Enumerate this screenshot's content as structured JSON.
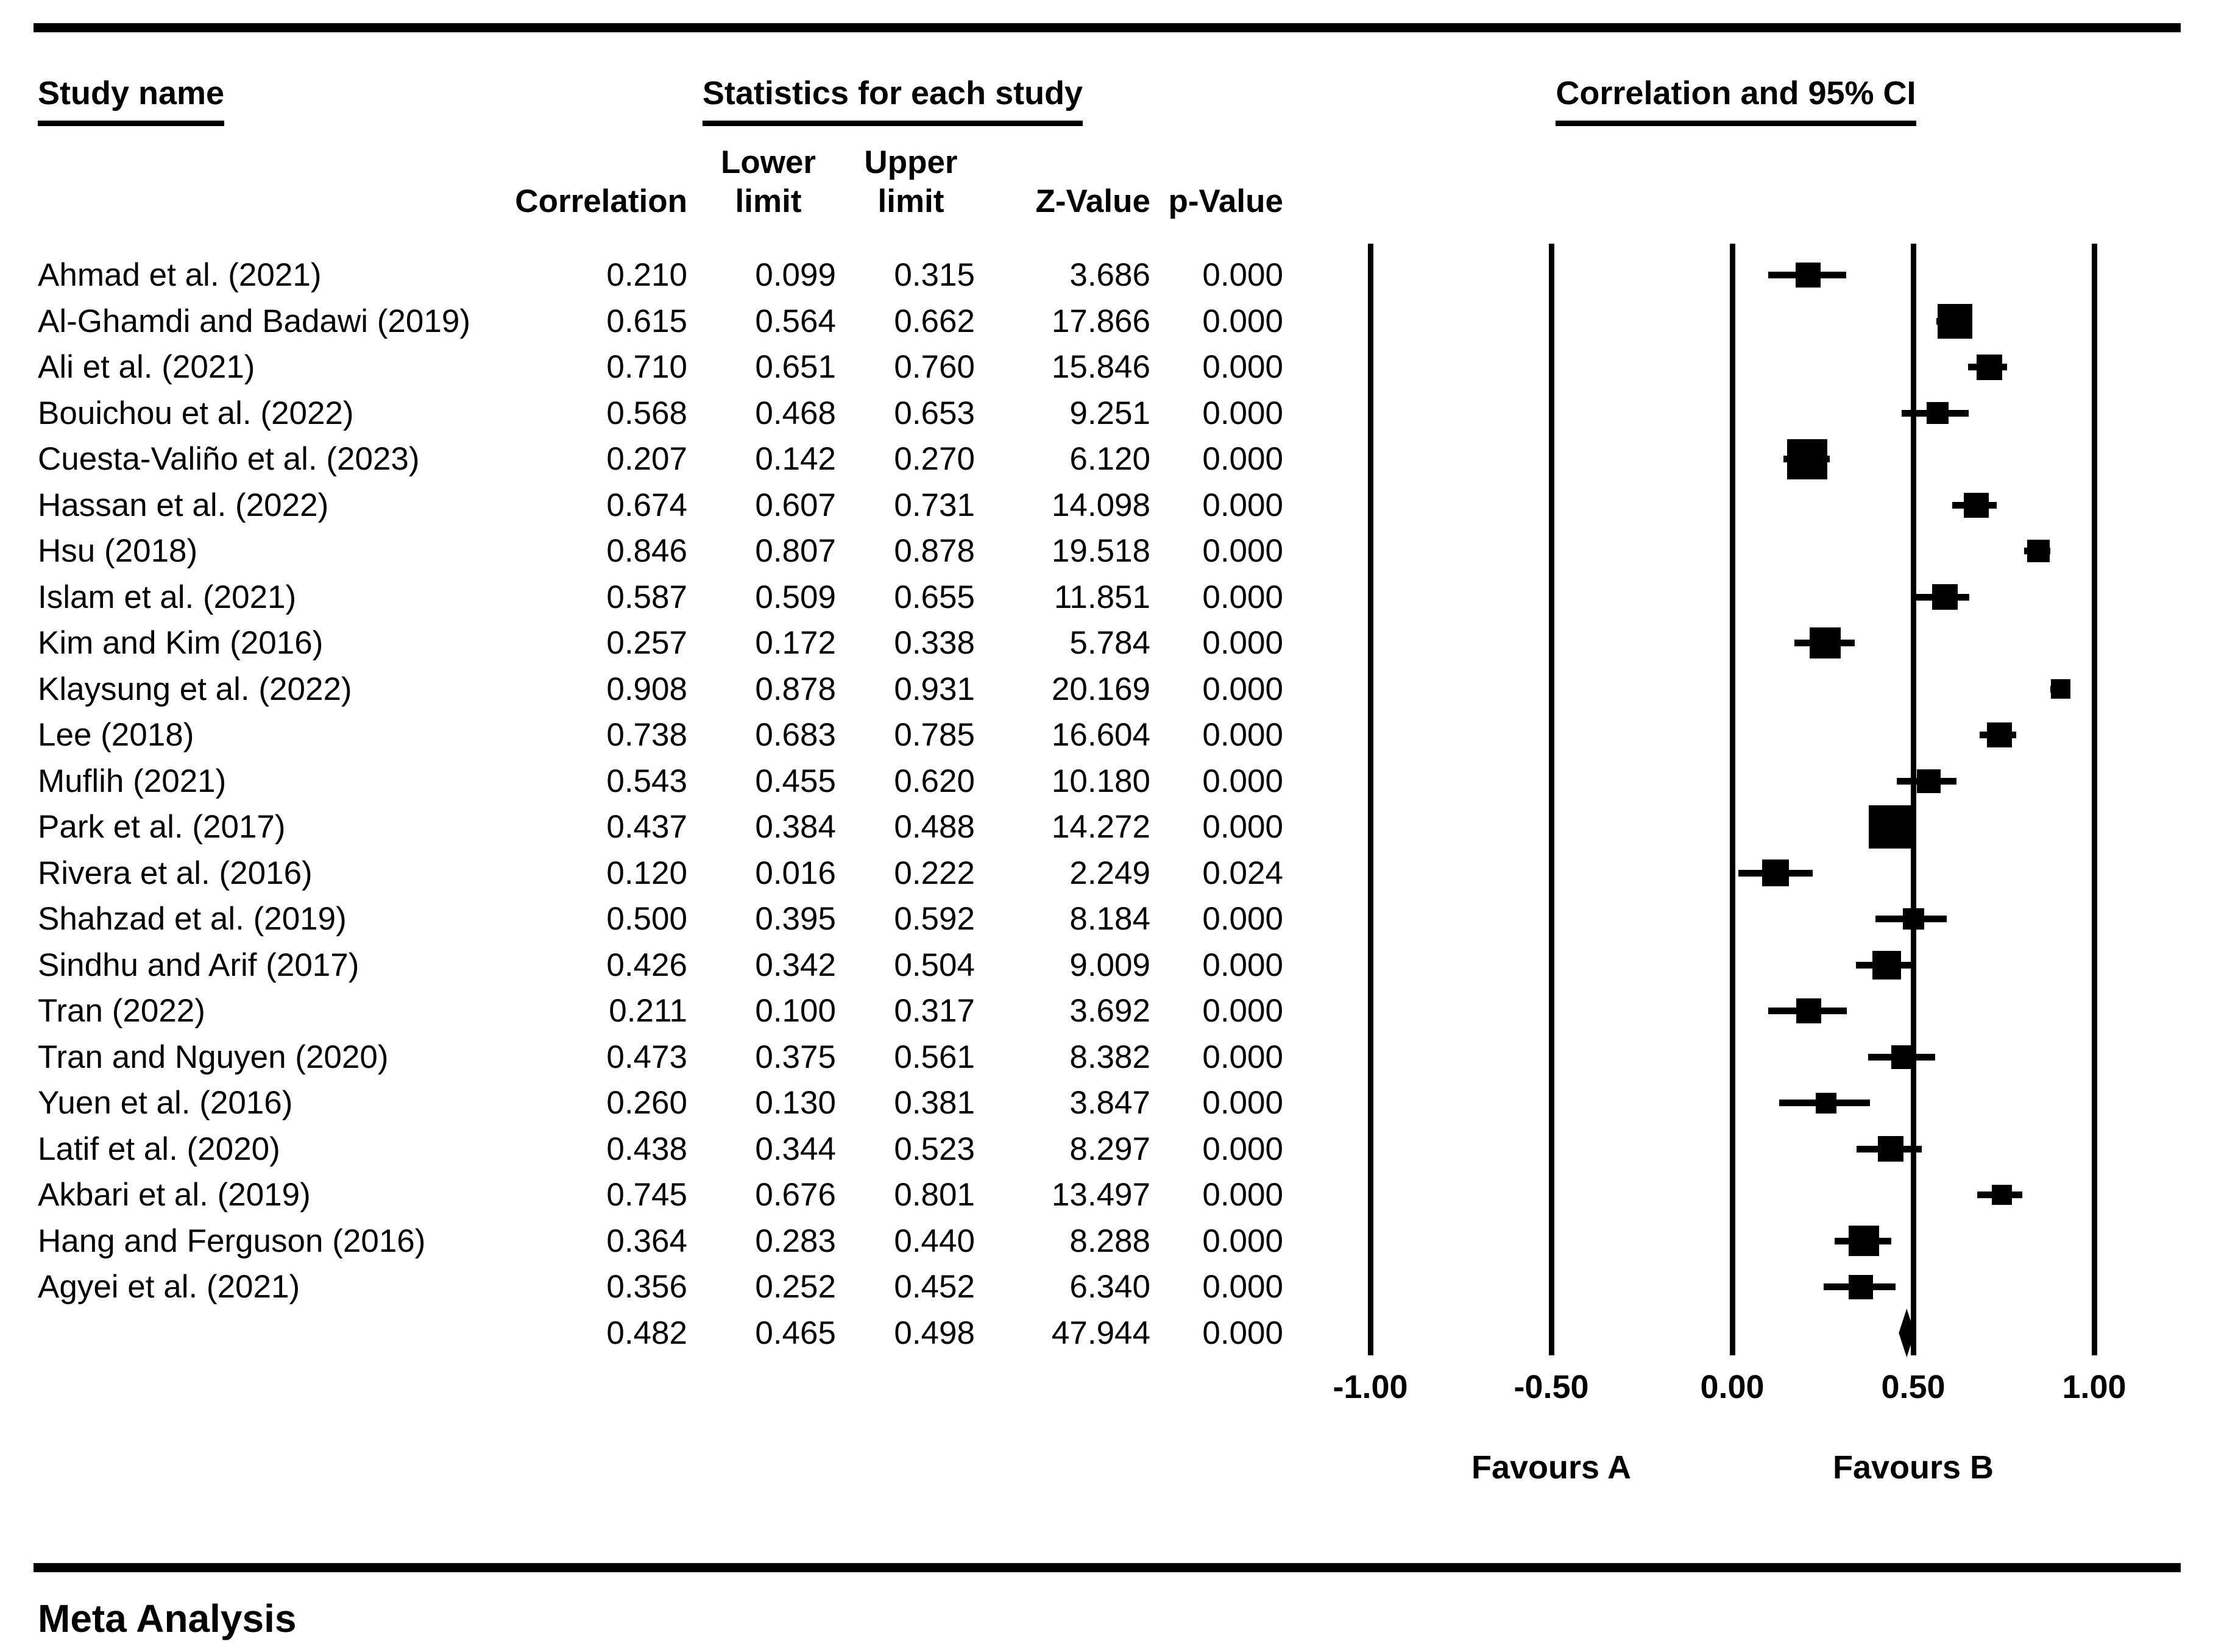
{
  "page": {
    "footer_title": "Meta Analysis"
  },
  "table": {
    "study_header": "Study name",
    "stats_header": "Statistics for each study",
    "plot_header": "Correlation and 95% CI",
    "columns": {
      "correlation": "Correlation",
      "lower": [
        "Lower",
        "limit"
      ],
      "upper": [
        "Upper",
        "limit"
      ],
      "z": "Z-Value",
      "p": "p-Value"
    }
  },
  "chart_data": {
    "type": "forest",
    "title": "Meta Analysis",
    "effect_measure": "Correlation and 95% CI",
    "x_axis": {
      "min": -1,
      "max": 1,
      "tick_values": [
        -1,
        -0.5,
        0,
        0.5,
        1
      ],
      "tick_labels": [
        "-1.00",
        "-0.50",
        "0.00",
        "0.50",
        "1.00"
      ]
    },
    "favours_left": "Favours A",
    "favours_right": "Favours B",
    "studies": [
      {
        "study": "Ahmad et al. (2021)",
        "correlation": "0.210",
        "lower": "0.099",
        "upper": "0.315",
        "z": "3.686",
        "p": "0.000",
        "msize": 41
      },
      {
        "study": "Al-Ghamdi and Badawi (2019)",
        "correlation": "0.615",
        "lower": "0.564",
        "upper": "0.662",
        "z": "17.866",
        "p": "0.000",
        "msize": 57
      },
      {
        "study": "Ali et al. (2021)",
        "correlation": "0.710",
        "lower": "0.651",
        "upper": "0.760",
        "z": "15.846",
        "p": "0.000",
        "msize": 42
      },
      {
        "study": "Bouichou et al. (2022)",
        "correlation": "0.568",
        "lower": "0.468",
        "upper": "0.653",
        "z": "9.251",
        "p": "0.000",
        "msize": 36
      },
      {
        "study": "Cuesta-Valiño et al. (2023)",
        "correlation": "0.207",
        "lower": "0.142",
        "upper": "0.270",
        "z": "6.120",
        "p": "0.000",
        "msize": 66
      },
      {
        "study": "Hassan et al. (2022)",
        "correlation": "0.674",
        "lower": "0.607",
        "upper": "0.731",
        "z": "14.098",
        "p": "0.000",
        "msize": 41
      },
      {
        "study": "Hsu (2018)",
        "correlation": "0.846",
        "lower": "0.807",
        "upper": "0.878",
        "z": "19.518",
        "p": "0.000",
        "msize": 37
      },
      {
        "study": "Islam et al. (2021)",
        "correlation": "0.587",
        "lower": "0.509",
        "upper": "0.655",
        "z": "11.851",
        "p": "0.000",
        "msize": 42
      },
      {
        "study": "Kim and Kim (2016)",
        "correlation": "0.257",
        "lower": "0.172",
        "upper": "0.338",
        "z": "5.784",
        "p": "0.000",
        "msize": 51
      },
      {
        "study": "Klaysung et al. (2022)",
        "correlation": "0.908",
        "lower": "0.878",
        "upper": "0.931",
        "z": "20.169",
        "p": "0.000",
        "msize": 32
      },
      {
        "study": "Lee (2018)",
        "correlation": "0.738",
        "lower": "0.683",
        "upper": "0.785",
        "z": "16.604",
        "p": "0.000",
        "msize": 41
      },
      {
        "study": "Muflih (2021)",
        "correlation": "0.543",
        "lower": "0.455",
        "upper": "0.620",
        "z": "10.180",
        "p": "0.000",
        "msize": 39
      },
      {
        "study": "Park et al. (2017)",
        "correlation": "0.437",
        "lower": "0.384",
        "upper": "0.488",
        "z": "14.272",
        "p": "0.000",
        "msize": 71
      },
      {
        "study": "Rivera et al. (2016)",
        "correlation": "0.120",
        "lower": "0.016",
        "upper": "0.222",
        "z": "2.249",
        "p": "0.024",
        "msize": 44
      },
      {
        "study": "Shahzad et al. (2019)",
        "correlation": "0.500",
        "lower": "0.395",
        "upper": "0.592",
        "z": "8.184",
        "p": "0.000",
        "msize": 35
      },
      {
        "study": "Sindhu and Arif (2017)",
        "correlation": "0.426",
        "lower": "0.342",
        "upper": "0.504",
        "z": "9.009",
        "p": "0.000",
        "msize": 47
      },
      {
        "study": "Tran (2022)",
        "correlation": "0.211",
        "lower": "0.100",
        "upper": "0.317",
        "z": "3.692",
        "p": "0.000",
        "msize": 41
      },
      {
        "study": "Tran and Nguyen (2020)",
        "correlation": "0.473",
        "lower": "0.375",
        "upper": "0.561",
        "z": "8.382",
        "p": "0.000",
        "msize": 39
      },
      {
        "study": "Yuen et al. (2016)",
        "correlation": "0.260",
        "lower": "0.130",
        "upper": "0.381",
        "z": "3.847",
        "p": "0.000",
        "msize": 34
      },
      {
        "study": "Latif et al. (2020)",
        "correlation": "0.438",
        "lower": "0.344",
        "upper": "0.523",
        "z": "8.297",
        "p": "0.000",
        "msize": 42
      },
      {
        "study": "Akbari et al. (2019)",
        "correlation": "0.745",
        "lower": "0.676",
        "upper": "0.801",
        "z": "13.497",
        "p": "0.000",
        "msize": 33
      },
      {
        "study": "Hang and Ferguson (2016)",
        "correlation": "0.364",
        "lower": "0.283",
        "upper": "0.440",
        "z": "8.288",
        "p": "0.000",
        "msize": 50
      },
      {
        "study": "Agyei et al. (2021)",
        "correlation": "0.356",
        "lower": "0.252",
        "upper": "0.452",
        "z": "6.340",
        "p": "0.000",
        "msize": 40
      }
    ],
    "summary": {
      "study": "",
      "correlation": "0.482",
      "lower": "0.465",
      "upper": "0.498",
      "z": "47.944",
      "p": "0.000"
    }
  }
}
